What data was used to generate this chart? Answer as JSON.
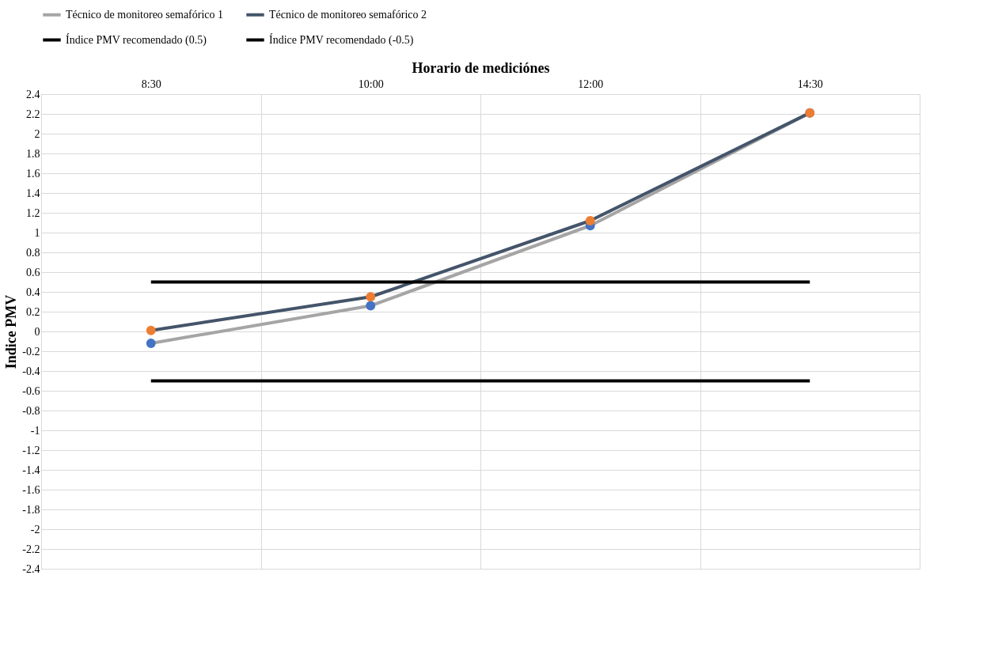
{
  "chart_data": {
    "type": "line",
    "xlabel": "Horario de mediciónes",
    "ylabel": "Indice PMV",
    "categories": [
      "8:30",
      "10:00",
      "12:00",
      "14:30"
    ],
    "series": [
      {
        "name": "Técnico de monitoreo semafórico 1",
        "color": "#a5a5a5",
        "colors": [
          "#4472c4",
          "#4472c4",
          "#4472c4",
          "#4472c4"
        ],
        "values": [
          -0.12,
          0.26,
          1.07,
          2.21
        ]
      },
      {
        "name": "Técnico de monitoreo semafórico 2",
        "color": "#44546a",
        "colors": [
          "#ed7d31",
          "#ed7d31",
          "#ed7d31",
          "#ed7d31"
        ],
        "values": [
          0.01,
          0.35,
          1.12,
          2.21
        ]
      },
      {
        "name": "Índice PMV recomendado (0.5)",
        "color": "#000000",
        "marker": "none",
        "values": [
          0.5,
          0.5,
          0.5,
          0.5
        ]
      },
      {
        "name": "Índice PMV recomendado (-0.5)",
        "color": "#000000",
        "marker": "none",
        "values": [
          -0.5,
          -0.5,
          -0.5,
          -0.5
        ]
      }
    ],
    "ylim": [
      -2.4,
      2.4
    ],
    "yticks": [
      -2.4,
      -2.2,
      -2,
      -1.8,
      -1.6,
      -1.4,
      -1.2,
      -1,
      -0.8,
      -0.6,
      -0.4,
      -0.2,
      0,
      0.2,
      0.4,
      0.6,
      0.8,
      1,
      1.2,
      1.4,
      1.6,
      1.8,
      2,
      2.2,
      2.4
    ],
    "grid": true,
    "legend": "top",
    "marker": "circle",
    "line_style": "solid"
  }
}
